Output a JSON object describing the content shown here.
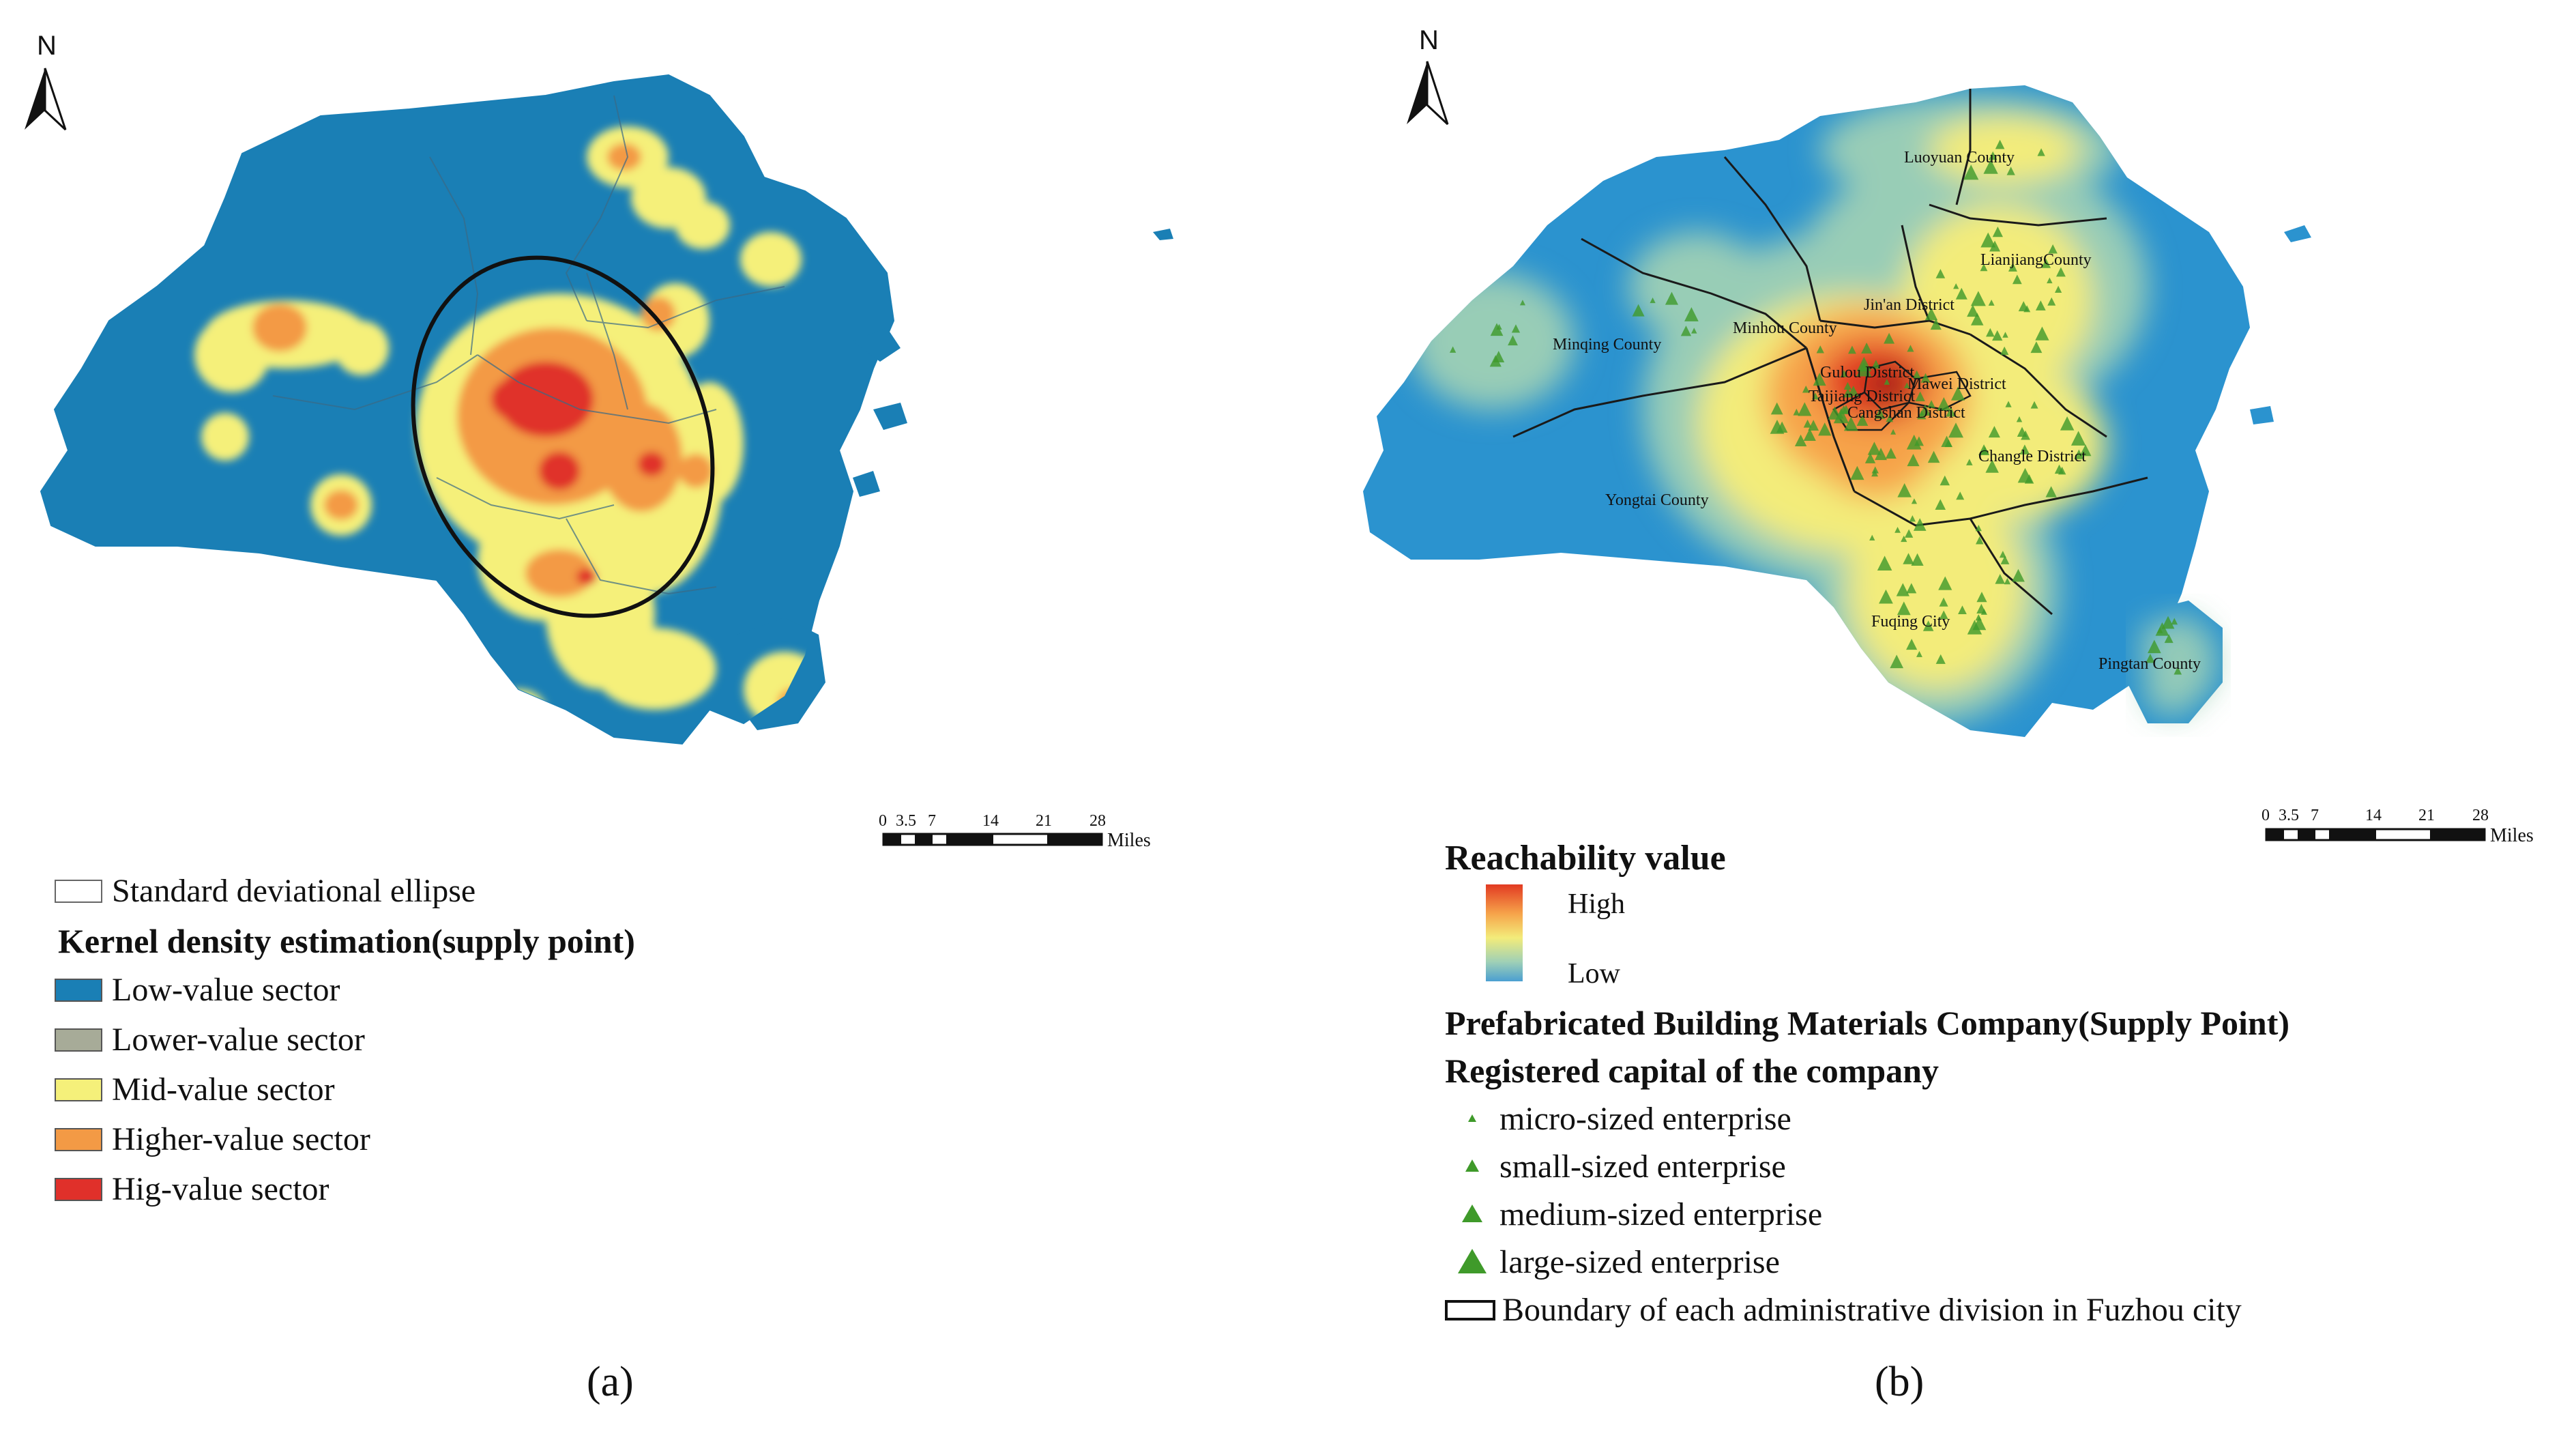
{
  "panel_a": {
    "north": "N",
    "scalebar": {
      "ticks": [
        "0",
        "3.5",
        "7",
        "14",
        "21",
        "28"
      ],
      "unit": "Miles"
    },
    "legend": {
      "ellipse_label": "Standard deviational ellipse",
      "title": "Kernel density estimation(supply point)",
      "items": [
        {
          "label": "Low-value sector",
          "color": "#1a7fb5"
        },
        {
          "label": "Lower-value sector",
          "color": "#a7ab98"
        },
        {
          "label": "Mid-value sector",
          "color": "#f5f07a"
        },
        {
          "label": "Higher-value sector",
          "color": "#f39a45"
        },
        {
          "label": "Hig-value sector",
          "color": "#e0302a"
        }
      ]
    },
    "caption": "(a)"
  },
  "panel_b": {
    "north": "N",
    "scalebar": {
      "ticks": [
        "0",
        "3.5",
        "7",
        "14",
        "21",
        "28"
      ],
      "unit": "Miles"
    },
    "place_labels": [
      "Luoyuan County",
      "LianjiangCounty",
      "Jin'an District",
      "Minhou County",
      "Minqing County",
      "Gulou District",
      "Mawei District",
      "Taijiang District",
      "Cangshan District",
      "Changle District",
      "Yongtai County",
      "Fuqing City",
      "Pingtan County"
    ],
    "legend": {
      "reach_title": "Reachability value",
      "high": "High",
      "low": "Low",
      "ramp_colors": [
        "#e23a22",
        "#f6a34a",
        "#f3ec7a",
        "#9fd0b6",
        "#4a9fd1"
      ],
      "company_title": "Prefabricated Building Materials Company(Supply Point)",
      "capital_title": "Registered capital of the company",
      "sizes": [
        {
          "label": "micro-sized enterprise"
        },
        {
          "label": "small-sized enterprise"
        },
        {
          "label": "medium-sized enterprise"
        },
        {
          "label": "large-sized enterprise"
        }
      ],
      "boundary_label": "Boundary of each administrative division in Fuzhou city"
    },
    "caption": "(b)"
  }
}
